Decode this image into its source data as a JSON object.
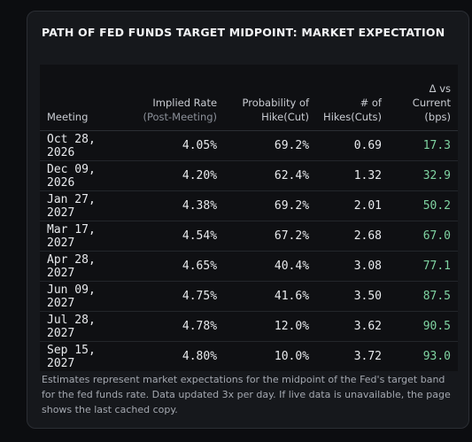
{
  "header": {
    "title": "PATH OF FED FUNDS TARGET MIDPOINT: MARKET EXPECTATION"
  },
  "table": {
    "columns": [
      {
        "label": "Meeting"
      },
      {
        "label": "Implied Rate",
        "sub": "(Post-Meeting)"
      },
      {
        "label": "Probability of Hike(Cut)"
      },
      {
        "label": "# of Hikes(Cuts)"
      },
      {
        "label": "Δ vs Current (bps)"
      }
    ],
    "rows": [
      [
        "Oct 28, 2026",
        "4.05%",
        "69.2%",
        "0.69",
        "17.3"
      ],
      [
        "Dec 09, 2026",
        "4.20%",
        "62.4%",
        "1.32",
        "32.9"
      ],
      [
        "Jan 27, 2027",
        "4.38%",
        "69.2%",
        "2.01",
        "50.2"
      ],
      [
        "Mar 17, 2027",
        "4.54%",
        "67.2%",
        "2.68",
        "67.0"
      ],
      [
        "Apr 28, 2027",
        "4.65%",
        "40.4%",
        "3.08",
        "77.1"
      ],
      [
        "Jun 09, 2027",
        "4.75%",
        "41.6%",
        "3.50",
        "87.5"
      ],
      [
        "Jul 28, 2027",
        "4.78%",
        "12.0%",
        "3.62",
        "90.5"
      ],
      [
        "Sep 15, 2027",
        "4.80%",
        "10.0%",
        "3.72",
        "93.0"
      ]
    ]
  },
  "footnote": "Estimates represent market expectations for the midpoint of the Fed's target band for the fed funds rate. Data updated 3x per day. If live data is unavailable, the page shows the last cached copy."
}
